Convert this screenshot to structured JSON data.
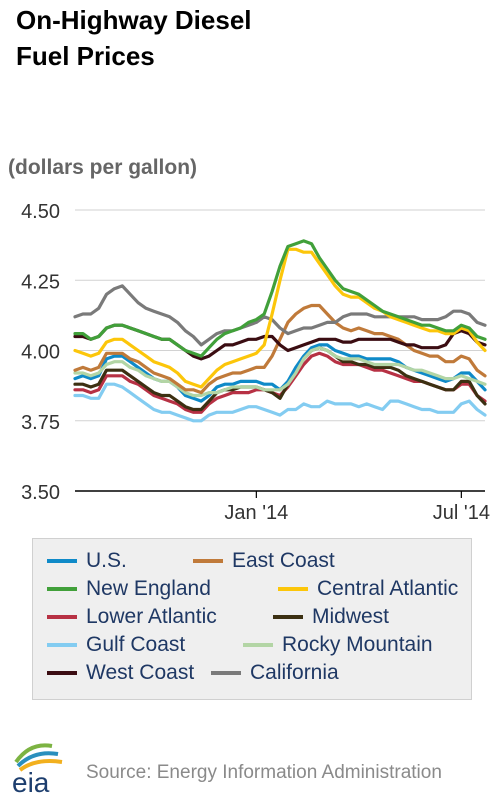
{
  "title_line1": "On-Highway Diesel",
  "title_line2": "Fuel Prices",
  "unit_label": "(dollars per gallon)",
  "source": "Source: Energy Information Administration",
  "logo_text": "eia",
  "chart_data": {
    "type": "line",
    "title": "On-Highway Diesel Fuel Prices",
    "ylabel": "(dollars per gallon)",
    "xlabel": "",
    "ylim": [
      3.5,
      4.5
    ],
    "yticks": [
      "3.50",
      "3.75",
      "4.00",
      "4.25",
      "4.50"
    ],
    "ytick_values": [
      3.5,
      3.75,
      4.0,
      4.25,
      4.5
    ],
    "xtick_labels": [
      "Jan '14",
      "Jul '14"
    ],
    "xtick_dates": [
      "2014-01-06",
      "2014-07-07"
    ],
    "grid": "horizontal",
    "legend_placement": "bottom",
    "x": [
      "2013-07-29",
      "2013-08-05",
      "2013-08-12",
      "2013-08-19",
      "2013-08-26",
      "2013-09-02",
      "2013-09-09",
      "2013-09-16",
      "2013-09-23",
      "2013-09-30",
      "2013-10-07",
      "2013-10-14",
      "2013-10-21",
      "2013-10-28",
      "2013-11-04",
      "2013-11-11",
      "2013-11-18",
      "2013-11-25",
      "2013-12-02",
      "2013-12-09",
      "2013-12-16",
      "2013-12-23",
      "2013-12-30",
      "2014-01-06",
      "2014-01-13",
      "2014-01-20",
      "2014-01-27",
      "2014-02-03",
      "2014-02-10",
      "2014-02-17",
      "2014-02-24",
      "2014-03-03",
      "2014-03-10",
      "2014-03-17",
      "2014-03-24",
      "2014-03-31",
      "2014-04-07",
      "2014-04-14",
      "2014-04-21",
      "2014-04-28",
      "2014-05-05",
      "2014-05-12",
      "2014-05-19",
      "2014-05-26",
      "2014-06-02",
      "2014-06-09",
      "2014-06-16",
      "2014-06-23",
      "2014-06-30",
      "2014-07-07",
      "2014-07-14",
      "2014-07-21",
      "2014-07-28"
    ],
    "series": [
      {
        "name": "U.S.",
        "color": "#0f8ac8",
        "values": [
          3.9,
          3.91,
          3.9,
          3.91,
          3.97,
          3.98,
          3.98,
          3.96,
          3.94,
          3.92,
          3.9,
          3.89,
          3.89,
          3.87,
          3.84,
          3.83,
          3.82,
          3.84,
          3.87,
          3.88,
          3.88,
          3.89,
          3.89,
          3.89,
          3.88,
          3.88,
          3.86,
          3.89,
          3.94,
          3.98,
          4.01,
          4.02,
          4.02,
          4.0,
          3.99,
          3.98,
          3.98,
          3.97,
          3.97,
          3.97,
          3.97,
          3.96,
          3.94,
          3.93,
          3.92,
          3.91,
          3.9,
          3.89,
          3.9,
          3.92,
          3.92,
          3.89,
          3.86
        ]
      },
      {
        "name": "East Coast",
        "color": "#c07a3a",
        "values": [
          3.93,
          3.94,
          3.93,
          3.94,
          3.99,
          3.99,
          3.99,
          3.97,
          3.96,
          3.94,
          3.92,
          3.91,
          3.9,
          3.88,
          3.86,
          3.86,
          3.85,
          3.88,
          3.9,
          3.91,
          3.92,
          3.92,
          3.93,
          3.94,
          3.94,
          3.98,
          4.04,
          4.1,
          4.13,
          4.15,
          4.16,
          4.16,
          4.13,
          4.1,
          4.08,
          4.07,
          4.08,
          4.07,
          4.06,
          4.06,
          4.05,
          4.04,
          4.02,
          4.0,
          3.99,
          3.98,
          3.98,
          3.96,
          3.96,
          3.98,
          3.97,
          3.93,
          3.91
        ]
      },
      {
        "name": "New England",
        "color": "#41a03a",
        "values": [
          4.06,
          4.06,
          4.04,
          4.05,
          4.08,
          4.09,
          4.09,
          4.08,
          4.07,
          4.06,
          4.05,
          4.04,
          4.04,
          4.02,
          4.0,
          3.99,
          3.98,
          4.01,
          4.04,
          4.06,
          4.07,
          4.08,
          4.1,
          4.11,
          4.13,
          4.21,
          4.3,
          4.37,
          4.38,
          4.39,
          4.38,
          4.33,
          4.29,
          4.25,
          4.22,
          4.21,
          4.2,
          4.18,
          4.16,
          4.14,
          4.13,
          4.12,
          4.11,
          4.1,
          4.09,
          4.09,
          4.08,
          4.07,
          4.07,
          4.09,
          4.08,
          4.05,
          4.04
        ]
      },
      {
        "name": "Central Atlantic",
        "color": "#fcc60a",
        "values": [
          4.0,
          3.99,
          3.98,
          3.99,
          4.03,
          4.04,
          4.04,
          4.02,
          4.0,
          3.98,
          3.96,
          3.95,
          3.94,
          3.92,
          3.89,
          3.88,
          3.87,
          3.9,
          3.93,
          3.95,
          3.96,
          3.97,
          3.98,
          3.99,
          4.02,
          4.13,
          4.25,
          4.36,
          4.36,
          4.35,
          4.35,
          4.31,
          4.27,
          4.23,
          4.2,
          4.19,
          4.19,
          4.17,
          4.15,
          4.14,
          4.12,
          4.11,
          4.1,
          4.09,
          4.08,
          4.07,
          4.07,
          4.06,
          4.06,
          4.08,
          4.07,
          4.03,
          4.0
        ]
      },
      {
        "name": "Lower Atlantic",
        "color": "#b73144",
        "values": [
          3.86,
          3.86,
          3.85,
          3.86,
          3.91,
          3.91,
          3.91,
          3.89,
          3.88,
          3.86,
          3.84,
          3.83,
          3.82,
          3.81,
          3.79,
          3.78,
          3.78,
          3.81,
          3.83,
          3.84,
          3.85,
          3.85,
          3.85,
          3.86,
          3.86,
          3.85,
          3.84,
          3.87,
          3.91,
          3.95,
          3.98,
          3.99,
          3.98,
          3.96,
          3.95,
          3.95,
          3.95,
          3.94,
          3.93,
          3.93,
          3.92,
          3.91,
          3.9,
          3.89,
          3.89,
          3.88,
          3.87,
          3.86,
          3.86,
          3.88,
          3.88,
          3.84,
          3.82
        ]
      },
      {
        "name": "Midwest",
        "color": "#3c3012",
        "values": [
          3.88,
          3.88,
          3.87,
          3.88,
          3.93,
          3.93,
          3.93,
          3.91,
          3.89,
          3.87,
          3.85,
          3.84,
          3.84,
          3.82,
          3.8,
          3.79,
          3.79,
          3.82,
          3.85,
          3.86,
          3.86,
          3.87,
          3.87,
          3.87,
          3.86,
          3.85,
          3.83,
          3.88,
          3.93,
          3.97,
          4.0,
          4.01,
          4.0,
          3.98,
          3.96,
          3.96,
          3.95,
          3.95,
          3.94,
          3.94,
          3.94,
          3.93,
          3.91,
          3.9,
          3.89,
          3.88,
          3.87,
          3.86,
          3.86,
          3.89,
          3.89,
          3.84,
          3.81
        ]
      },
      {
        "name": "Gulf Coast",
        "color": "#83ccf1",
        "values": [
          3.84,
          3.84,
          3.83,
          3.83,
          3.88,
          3.88,
          3.87,
          3.85,
          3.83,
          3.81,
          3.79,
          3.78,
          3.78,
          3.77,
          3.76,
          3.75,
          3.75,
          3.77,
          3.78,
          3.78,
          3.78,
          3.79,
          3.8,
          3.8,
          3.79,
          3.78,
          3.77,
          3.79,
          3.79,
          3.81,
          3.8,
          3.8,
          3.82,
          3.81,
          3.81,
          3.81,
          3.8,
          3.81,
          3.8,
          3.79,
          3.82,
          3.82,
          3.81,
          3.8,
          3.79,
          3.79,
          3.78,
          3.78,
          3.78,
          3.81,
          3.82,
          3.79,
          3.77
        ]
      },
      {
        "name": "Rocky Mountain",
        "color": "#b3d5a5",
        "values": [
          3.92,
          3.92,
          3.91,
          3.92,
          3.95,
          3.96,
          3.96,
          3.94,
          3.93,
          3.91,
          3.9,
          3.89,
          3.89,
          3.87,
          3.85,
          3.84,
          3.84,
          3.85,
          3.85,
          3.86,
          3.87,
          3.87,
          3.87,
          3.87,
          3.86,
          3.86,
          3.86,
          3.88,
          3.92,
          3.97,
          4.0,
          4.01,
          4.0,
          3.98,
          3.97,
          3.97,
          3.97,
          3.96,
          3.95,
          3.95,
          3.95,
          3.95,
          3.94,
          3.93,
          3.93,
          3.92,
          3.91,
          3.9,
          3.9,
          3.91,
          3.9,
          3.89,
          3.88
        ]
      },
      {
        "name": "West Coast",
        "color": "#3b0d12",
        "values": [
          4.05,
          4.05,
          4.04,
          4.05,
          4.08,
          4.09,
          4.09,
          4.08,
          4.07,
          4.06,
          4.05,
          4.04,
          4.04,
          4.02,
          4.0,
          3.98,
          3.97,
          3.98,
          4.0,
          4.02,
          4.02,
          4.03,
          4.04,
          4.04,
          4.05,
          4.05,
          4.02,
          4.0,
          4.01,
          4.02,
          4.03,
          4.04,
          4.04,
          4.04,
          4.03,
          4.03,
          4.04,
          4.04,
          4.04,
          4.04,
          4.04,
          4.03,
          4.02,
          4.02,
          4.01,
          4.01,
          4.01,
          4.02,
          4.06,
          4.07,
          4.06,
          4.03,
          4.02
        ]
      },
      {
        "name": "California",
        "color": "#7a7a7a",
        "values": [
          4.12,
          4.13,
          4.13,
          4.15,
          4.2,
          4.22,
          4.23,
          4.2,
          4.17,
          4.15,
          4.14,
          4.13,
          4.12,
          4.1,
          4.07,
          4.05,
          4.02,
          4.04,
          4.06,
          4.07,
          4.07,
          4.08,
          4.09,
          4.1,
          4.12,
          4.11,
          4.08,
          4.06,
          4.07,
          4.08,
          4.08,
          4.09,
          4.1,
          4.1,
          4.12,
          4.13,
          4.13,
          4.13,
          4.12,
          4.12,
          4.12,
          4.12,
          4.12,
          4.12,
          4.11,
          4.11,
          4.11,
          4.12,
          4.14,
          4.14,
          4.13,
          4.1,
          4.09
        ]
      }
    ]
  }
}
